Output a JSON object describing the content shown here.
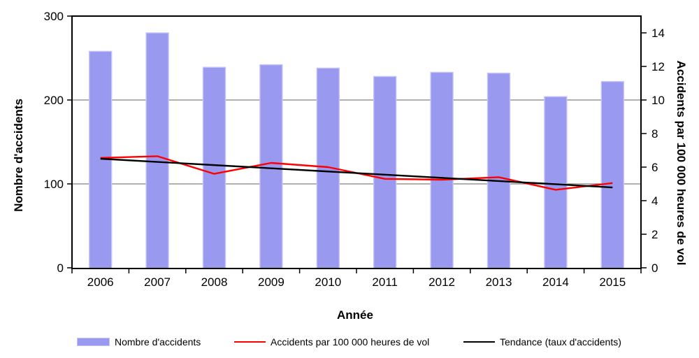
{
  "chart_data": {
    "type": "bar",
    "categories": [
      "2006",
      "2007",
      "2008",
      "2009",
      "2010",
      "2011",
      "2012",
      "2013",
      "2014",
      "2015"
    ],
    "series": [
      {
        "name": "Nombre d'accidents",
        "type": "bar",
        "axis": "left",
        "color": "#9999F0",
        "values": [
          258,
          280,
          239,
          242,
          238,
          228,
          233,
          232,
          204,
          222
        ]
      },
      {
        "name": "Accidents par 100 000 heures de vol",
        "type": "line",
        "axis": "right",
        "color": "#FF0000",
        "values": [
          6.55,
          6.65,
          5.6,
          6.25,
          6.0,
          5.3,
          5.25,
          5.4,
          4.65,
          5.05
        ]
      },
      {
        "name": "Tendance (taux d'accidents)",
        "type": "line",
        "axis": "right",
        "color": "#000000",
        "values": [
          6.5,
          6.31,
          6.12,
          5.93,
          5.74,
          5.55,
          5.36,
          5.17,
          4.98,
          4.79
        ]
      }
    ],
    "xlabel": "Année",
    "ylabel_left": "Nombre d'accidents",
    "ylabel_right": "Accidents par 100 000 heures de vol",
    "ylim_left": [
      0,
      300
    ],
    "ylim_right": [
      0,
      15
    ],
    "yticks_left": [
      0,
      100,
      200,
      300
    ],
    "yticks_right": [
      0,
      2,
      4,
      6,
      8,
      10,
      12,
      14
    ],
    "grid": true,
    "legend_position": "bottom",
    "colors": {
      "grid": "#808080",
      "axis": "#000000",
      "bar_border": "#C4C4F8",
      "background": "#FFFFFF"
    }
  }
}
